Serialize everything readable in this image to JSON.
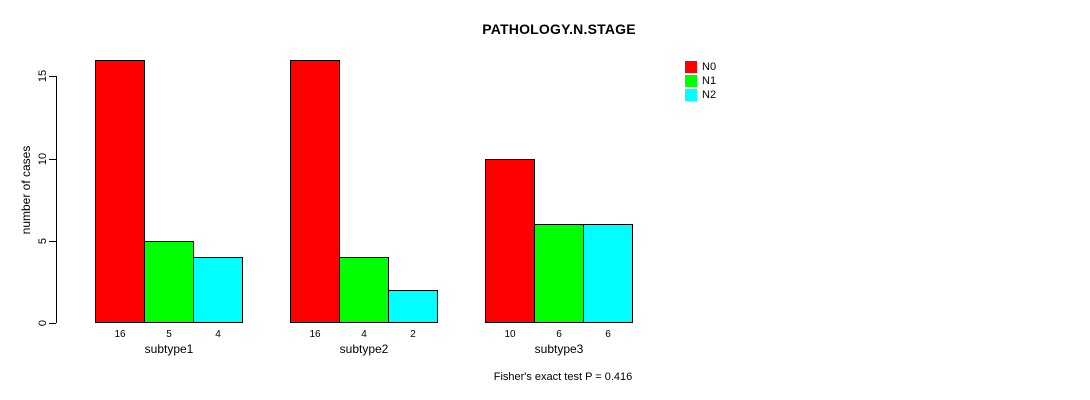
{
  "title": "PATHOLOGY.N.STAGE",
  "chart_data": {
    "type": "bar",
    "title": "PATHOLOGY.N.STAGE",
    "categories": [
      "subtype1",
      "subtype2",
      "subtype3"
    ],
    "series": [
      {
        "name": "N0",
        "color": "#ff0000",
        "values": [
          16,
          16,
          10
        ]
      },
      {
        "name": "N1",
        "color": "#00ff00",
        "values": [
          5,
          4,
          6
        ]
      },
      {
        "name": "N2",
        "color": "#00ffff",
        "values": [
          4,
          2,
          6
        ]
      }
    ],
    "ylabel": "number of cases",
    "xlabel": "",
    "ylim": [
      0,
      16
    ],
    "yticks": [
      0,
      5,
      10,
      15
    ],
    "grid": false,
    "bar_value_labels": true,
    "legend_position": "top-right",
    "annotation": "Fisher's exact test P = 0.416",
    "background_color": "#ffffff",
    "bar_border_color": "#000000"
  }
}
